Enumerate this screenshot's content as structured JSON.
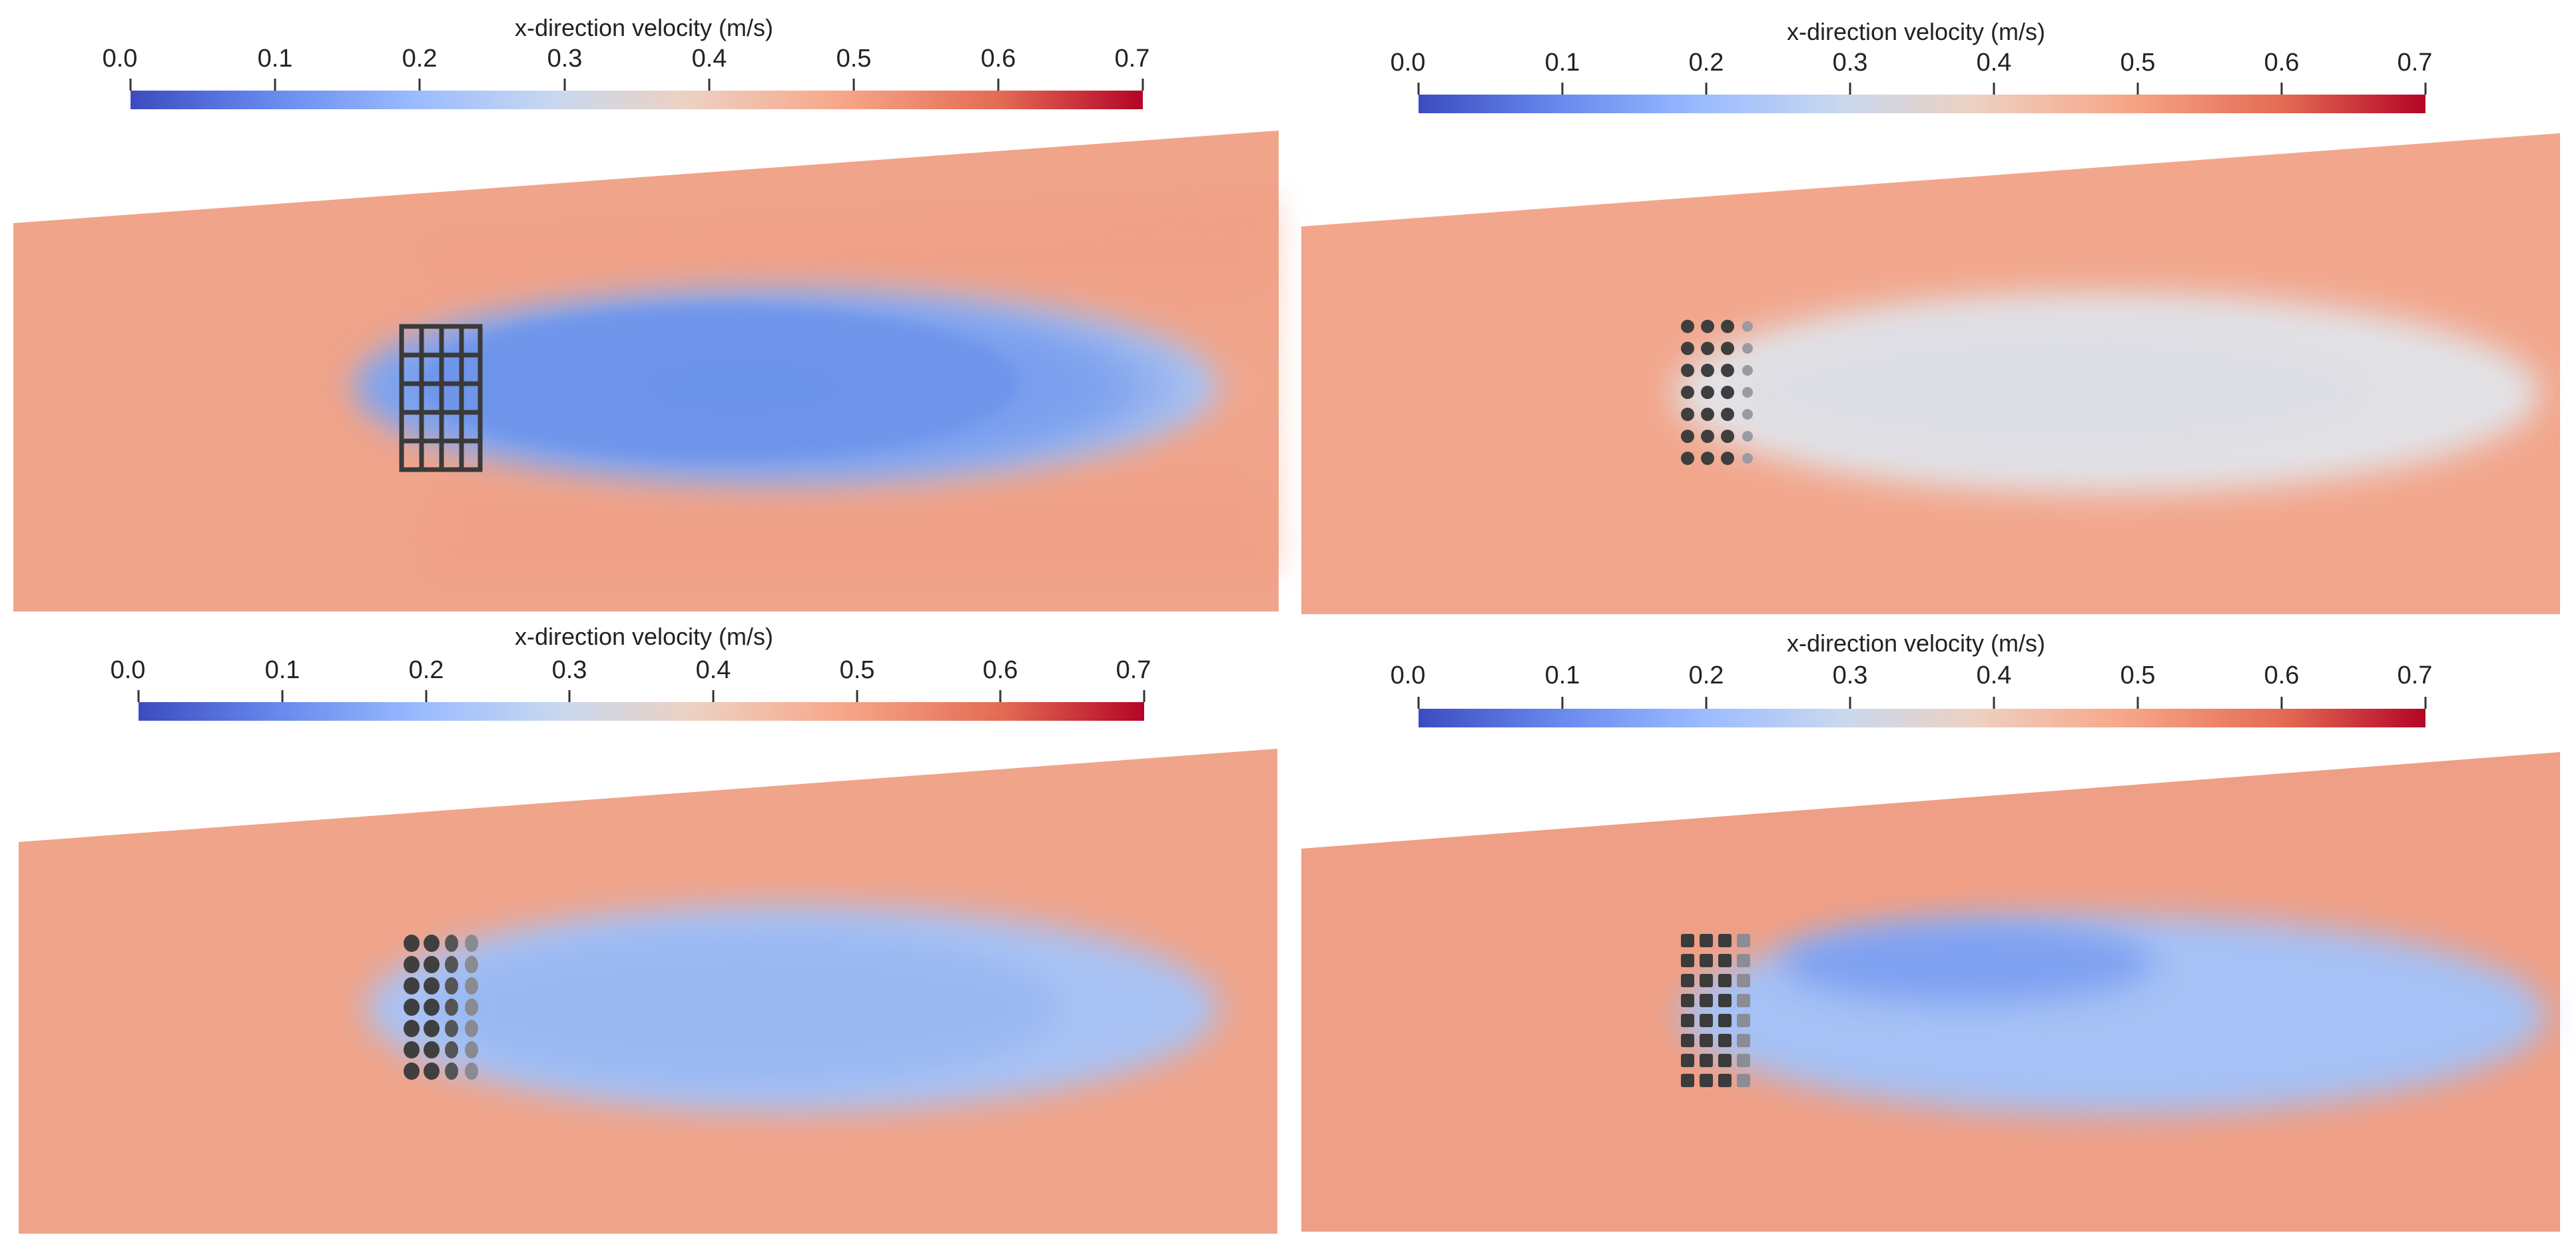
{
  "figure": {
    "colorbar_title": "x-direction velocity (m/s)",
    "ticks": [
      "0.0",
      "0.1",
      "0.2",
      "0.3",
      "0.4",
      "0.5",
      "0.6",
      "0.7"
    ],
    "colormap": [
      "#3b4cc0",
      "#6889ee",
      "#9abbff",
      "#c9d8ef",
      "#edd1c2",
      "#f7a789",
      "#e36a53",
      "#b40426"
    ],
    "background_flow_color": "#f0a48a"
  },
  "panels": [
    {
      "obstacle": "square grid",
      "wake_color": "#7ea2ee",
      "wake_core_color": "#6c93ea"
    },
    {
      "obstacle": "spheres",
      "wake_color": "#e2e2e6",
      "wake_core_color": "#dddde4"
    },
    {
      "obstacle": "discs",
      "wake_color": "#a8c2f4",
      "wake_core_color": "#98b7f2"
    },
    {
      "obstacle": "cubes",
      "wake_color": "#a5c1f5",
      "wake_core_color": "#7d9ff0"
    }
  ]
}
